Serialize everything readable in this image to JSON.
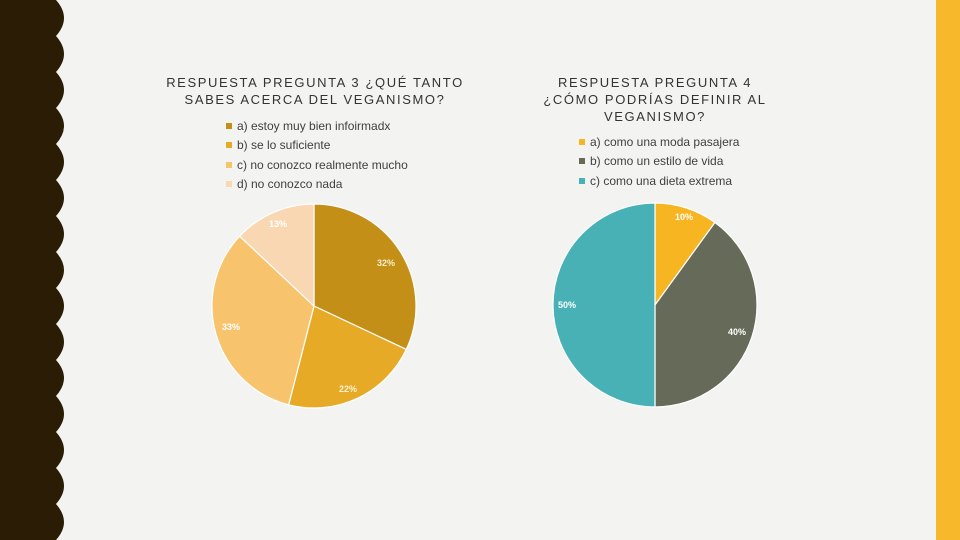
{
  "colors": {
    "background": "#f3f3f1",
    "left_band": "#2b1d05",
    "right_band": "#f7b92b"
  },
  "chart_data": [
    {
      "type": "pie",
      "title": "RESPUESTA PREGUNTA 3 ¿QUÉ TANTO SABES ACERCA DEL VEGANISMO?",
      "legend_position": "top",
      "slices": [
        {
          "label": "a) estoy muy bien infoirmadx",
          "value": 32,
          "display": "32%",
          "color": "#c38f17",
          "label_color": "#f6f0c8"
        },
        {
          "label": "b) se lo suficiente",
          "value": 22,
          "display": "22%",
          "color": "#e7aa27",
          "label_color": "#fbf3d6"
        },
        {
          "label": "c) no conozco realmente mucho",
          "value": 33,
          "display": "33%",
          "color": "#f7c46d",
          "label_color": "#ffffff"
        },
        {
          "label": "d) no conozco nada",
          "value": 13,
          "display": "13%",
          "color": "#f9d7b2",
          "label_color": "#ffffff"
        }
      ]
    },
    {
      "type": "pie",
      "title": "RESPUESTA PREGUNTA 4 ¿CÓMO PODRÍAS DEFINIR AL VEGANISMO?",
      "legend_position": "top",
      "slices": [
        {
          "label": "a) como una moda pasajera",
          "value": 10,
          "display": "10%",
          "color": "#f8b522",
          "label_color": "#ffffff"
        },
        {
          "label": "b) como un estilo de vida",
          "value": 40,
          "display": "40%",
          "color": "#666a59",
          "label_color": "#ffffff"
        },
        {
          "label": "c) como una dieta extrema",
          "value": 50,
          "display": "50%",
          "color": "#47b1b5",
          "label_color": "#ffffff"
        }
      ]
    }
  ]
}
